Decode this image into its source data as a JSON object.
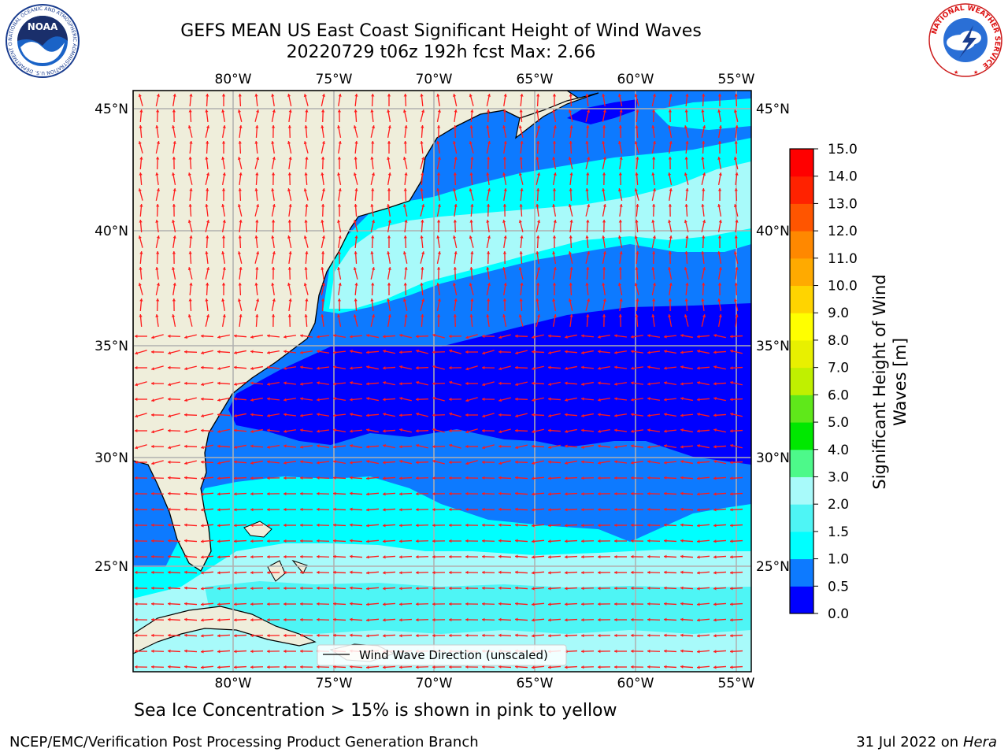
{
  "header": {
    "title_line1": "GEFS MEAN US East Coast Significant Height of Wind Waves",
    "title_line2": "20220729 t06z 192h fcst   Max: 2.66"
  },
  "logos": {
    "noaa_text": "NOAA",
    "noaa_ring_text": "NATIONAL OCEANIC AND ATMOSPHERIC ADMINISTRATION  U.S. DEPARTMENT OF COMMERCE",
    "nws_ring_text": "NATIONAL WEATHER SERVICE"
  },
  "colors": {
    "land": "#efeedb",
    "arrow": "#ff1a1a",
    "grid": "#b0b0b0",
    "levels": [
      "#0000ff",
      "#0d7aff",
      "#00ffff",
      "#4ef5f5",
      "#a8fafa",
      "#4df98a",
      "#00e800",
      "#5fe81a",
      "#c0f000",
      "#e8f000",
      "#ffff00",
      "#ffd400",
      "#ffaa00",
      "#ff8800",
      "#ff5500",
      "#ff2200"
    ]
  },
  "chart_data": {
    "type": "heatmap",
    "map": {
      "lon_range": [
        -85,
        -54.5
      ],
      "lat_range": [
        20.5,
        46
      ],
      "lon_ticks": [
        -80,
        -75,
        -70,
        -65,
        -60,
        -55
      ],
      "lon_tick_labels": [
        "80°W",
        "75°W",
        "70°W",
        "65°W",
        "60°W",
        "55°W"
      ],
      "lat_ticks": [
        25,
        30,
        35,
        40,
        45
      ],
      "lat_tick_labels": [
        "25°N",
        "30°N",
        "35°N",
        "40°N",
        "45°N"
      ],
      "grid": true
    },
    "field": "Significant Height of Wind Waves",
    "colorbar": {
      "label": "Significant Height of Wind Waves [m]",
      "levels": [
        0.0,
        0.5,
        1.0,
        1.5,
        2.0,
        3.0,
        4.0,
        5.0,
        6.0,
        7.0,
        8.0,
        9.0,
        10.0,
        11.0,
        12.0,
        13.0,
        14.0,
        15.0
      ],
      "tick_labels": [
        "0.0",
        "0.5",
        "1.0",
        "1.5",
        "2.0",
        "3.0",
        "4.0",
        "5.0",
        "6.0",
        "7.0",
        "8.0",
        "9.0",
        "10.0",
        "11.0",
        "12.0",
        "13.0",
        "14.0",
        "15.0"
      ]
    },
    "max_value": 2.66,
    "legend": {
      "label": "Wind Wave Direction (unscaled)",
      "placement": "bottom-center"
    }
  },
  "caption": "Sea Ice Concentration > 15% is shown in pink to yellow",
  "footer": {
    "left": "NCEP/EMC/Verification Post Processing Product Generation Branch",
    "right_date": "31 Jul 2022 on ",
    "right_host": "Hera"
  }
}
